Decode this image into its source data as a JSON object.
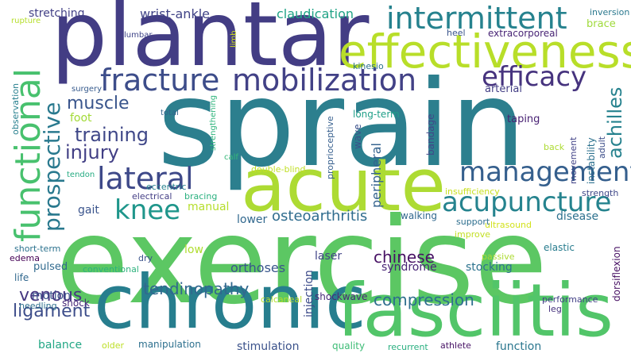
{
  "words": [
    {
      "text": "sprain",
      "color": "#2c7f8e"
    },
    {
      "text": "exercise",
      "color": "#5cc763"
    },
    {
      "text": "plantar",
      "color": "#433d84"
    },
    {
      "text": "chronic",
      "color": "#277e8e"
    },
    {
      "text": "fasciitis",
      "color": "#52c569"
    },
    {
      "text": "acute",
      "color": "#addb33"
    },
    {
      "text": "effectiveness",
      "color": "#b8de29"
    },
    {
      "text": "functional",
      "color": "#48c16e"
    },
    {
      "text": "intermittent",
      "color": "#26828e"
    },
    {
      "text": "fracture",
      "color": "#3d4d8a"
    },
    {
      "text": "mobilization",
      "color": "#424186"
    },
    {
      "text": "efficacy",
      "color": "#46337e"
    },
    {
      "text": "management",
      "color": "#355f8d"
    },
    {
      "text": "acupuncture",
      "color": "#25838e"
    },
    {
      "text": "lateral",
      "color": "#3e4989"
    },
    {
      "text": "knee",
      "color": "#1f968b"
    },
    {
      "text": "prospective",
      "color": "#29798e"
    },
    {
      "text": "training",
      "color": "#3f4788"
    },
    {
      "text": "injury",
      "color": "#423f85"
    },
    {
      "text": "muscle",
      "color": "#39558c"
    },
    {
      "text": "achilles",
      "color": "#26828e"
    },
    {
      "text": "venous",
      "color": "#453781"
    },
    {
      "text": "ligament",
      "color": "#3d4d8a"
    },
    {
      "text": "chinese",
      "color": "#471164"
    },
    {
      "text": "compression",
      "color": "#2e6e8e"
    },
    {
      "text": "tendinopathy",
      "color": "#31688e"
    },
    {
      "text": "osteoarthritis",
      "color": "#2f6c8e"
    },
    {
      "text": "orthoses",
      "color": "#39568c"
    },
    {
      "text": "peripheral",
      "color": "#33628d"
    },
    {
      "text": "claudication",
      "color": "#20a386"
    },
    {
      "text": "wrist-ankle",
      "color": "#414487"
    },
    {
      "text": "stretching",
      "color": "#424086"
    },
    {
      "text": "foot",
      "color": "#a2da37"
    },
    {
      "text": "gait",
      "color": "#3a548c"
    },
    {
      "text": "manual",
      "color": "#b5de2b"
    },
    {
      "text": "lower",
      "color": "#31688e"
    },
    {
      "text": "low",
      "color": "#b0dd2f"
    },
    {
      "text": "disease",
      "color": "#2c718e"
    },
    {
      "text": "laser",
      "color": "#414487"
    },
    {
      "text": "stocking",
      "color": "#2c738e"
    },
    {
      "text": "syndrome",
      "color": "#482475"
    },
    {
      "text": "injection",
      "color": "#3e4c8a"
    },
    {
      "text": "shockwave",
      "color": "#482878"
    },
    {
      "text": "stimulation",
      "color": "#3b528b"
    },
    {
      "text": "quality",
      "color": "#3cbc75"
    },
    {
      "text": "function",
      "color": "#2a768e"
    },
    {
      "text": "recurrent",
      "color": "#29af7f"
    },
    {
      "text": "athlete",
      "color": "#471365"
    },
    {
      "text": "manipulation",
      "color": "#2d708e"
    },
    {
      "text": "balance",
      "color": "#22a785"
    },
    {
      "text": "older",
      "color": "#bddf26"
    },
    {
      "text": "motion",
      "color": "#3b528b"
    },
    {
      "text": "shock",
      "color": "#482878"
    },
    {
      "text": "pulsed",
      "color": "#306a8e"
    },
    {
      "text": "life",
      "color": "#31688e"
    },
    {
      "text": "needling",
      "color": "#2d708e"
    },
    {
      "text": "edema",
      "color": "#440154"
    },
    {
      "text": "short-term",
      "color": "#2c728e"
    },
    {
      "text": "conventional",
      "color": "#2db27d"
    },
    {
      "text": "dry",
      "color": "#3b528b"
    },
    {
      "text": "calcaneal",
      "color": "#b5de2b"
    },
    {
      "text": "performance",
      "color": "#424086"
    },
    {
      "text": "leg",
      "color": "#46327e"
    },
    {
      "text": "dorsiflexion",
      "color": "#471063"
    },
    {
      "text": "elastic",
      "color": "#287c8e"
    },
    {
      "text": "passive",
      "color": "#addb33"
    },
    {
      "text": "improve",
      "color": "#c2df23"
    },
    {
      "text": "ultrasound",
      "color": "#d2e21b"
    },
    {
      "text": "support",
      "color": "#2e6f8e"
    },
    {
      "text": "walking",
      "color": "#31688e"
    },
    {
      "text": "strength",
      "color": "#3f4889"
    },
    {
      "text": "insufficiency",
      "color": "#c8e020"
    },
    {
      "text": "electrical",
      "color": "#433e85"
    },
    {
      "text": "bracing",
      "color": "#2ab07f"
    },
    {
      "text": "eccentric",
      "color": "#26828e"
    },
    {
      "text": "double-blind",
      "color": "#c0df25"
    },
    {
      "text": "tendon",
      "color": "#25ab82"
    },
    {
      "text": "calf",
      "color": "#35b779"
    },
    {
      "text": "strengthening",
      "color": "#2fb47c"
    },
    {
      "text": "total",
      "color": "#33638d"
    },
    {
      "text": "surgery",
      "color": "#375b8d"
    },
    {
      "text": "observation",
      "color": "#277f8e"
    },
    {
      "text": "proprioceptive",
      "color": "#355e8d"
    },
    {
      "text": "wave",
      "color": "#3b518b"
    },
    {
      "text": "bandage",
      "color": "#404688"
    },
    {
      "text": "long-term",
      "color": "#1f9f88"
    },
    {
      "text": "taping",
      "color": "#482173"
    },
    {
      "text": "instability",
      "color": "#2c718e"
    },
    {
      "text": "adult",
      "color": "#3d4e8a"
    },
    {
      "text": "movement",
      "color": "#414287"
    },
    {
      "text": "back",
      "color": "#addb33"
    },
    {
      "text": "arterial",
      "color": "#433e85"
    },
    {
      "text": "kinesio",
      "color": "#2c728e"
    },
    {
      "text": "heel",
      "color": "#3a548c"
    },
    {
      "text": "extracorporeal",
      "color": "#482475"
    },
    {
      "text": "brace",
      "color": "#9fda3a"
    },
    {
      "text": "inversion",
      "color": "#2a788e"
    },
    {
      "text": "lumbar",
      "color": "#404588"
    },
    {
      "text": "limb",
      "color": "#d0e11c"
    },
    {
      "text": "rupture",
      "color": "#b5de2b"
    }
  ]
}
